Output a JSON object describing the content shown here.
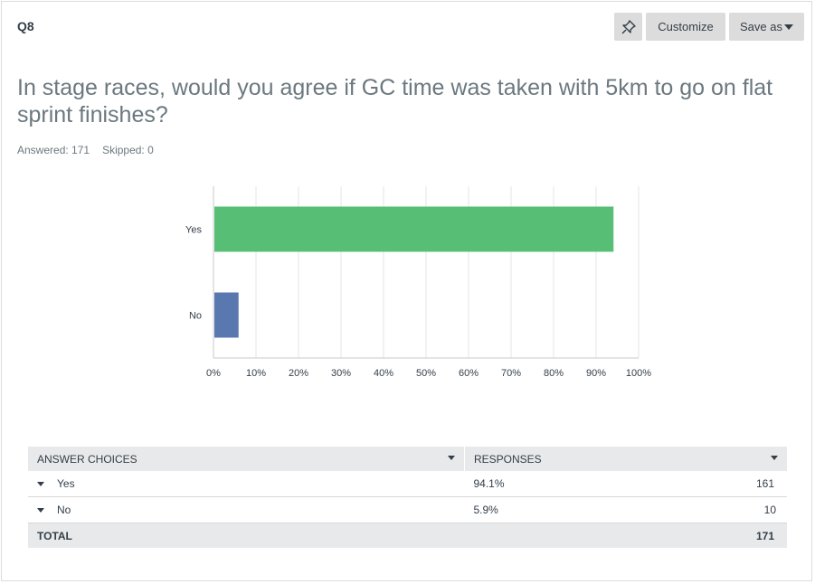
{
  "question": {
    "number": "Q8",
    "title": "In stage races, would you agree if GC time was taken with 5km to go on flat sprint finishes?",
    "answered_label": "Answered: 171",
    "skipped_label": "Skipped: 0"
  },
  "toolbar": {
    "pin_icon": "pin-icon",
    "customize_label": "Customize",
    "save_as_label": "Save as"
  },
  "chart_data": {
    "type": "bar",
    "orientation": "horizontal",
    "categories": [
      "Yes",
      "No"
    ],
    "values": [
      94.1,
      5.9
    ],
    "colors": [
      "#57bf75",
      "#5a78b0"
    ],
    "xlim": [
      0,
      100
    ],
    "xticks": [
      "0%",
      "10%",
      "20%",
      "30%",
      "40%",
      "50%",
      "60%",
      "70%",
      "80%",
      "90%",
      "100%"
    ],
    "grid": true
  },
  "table": {
    "headers": [
      "ANSWER CHOICES",
      "RESPONSES"
    ],
    "rows": [
      {
        "choice": "Yes",
        "percent": "94.1%",
        "count": "161"
      },
      {
        "choice": "No",
        "percent": "5.9%",
        "count": "10"
      }
    ],
    "total_label": "TOTAL",
    "total_count": "171"
  }
}
